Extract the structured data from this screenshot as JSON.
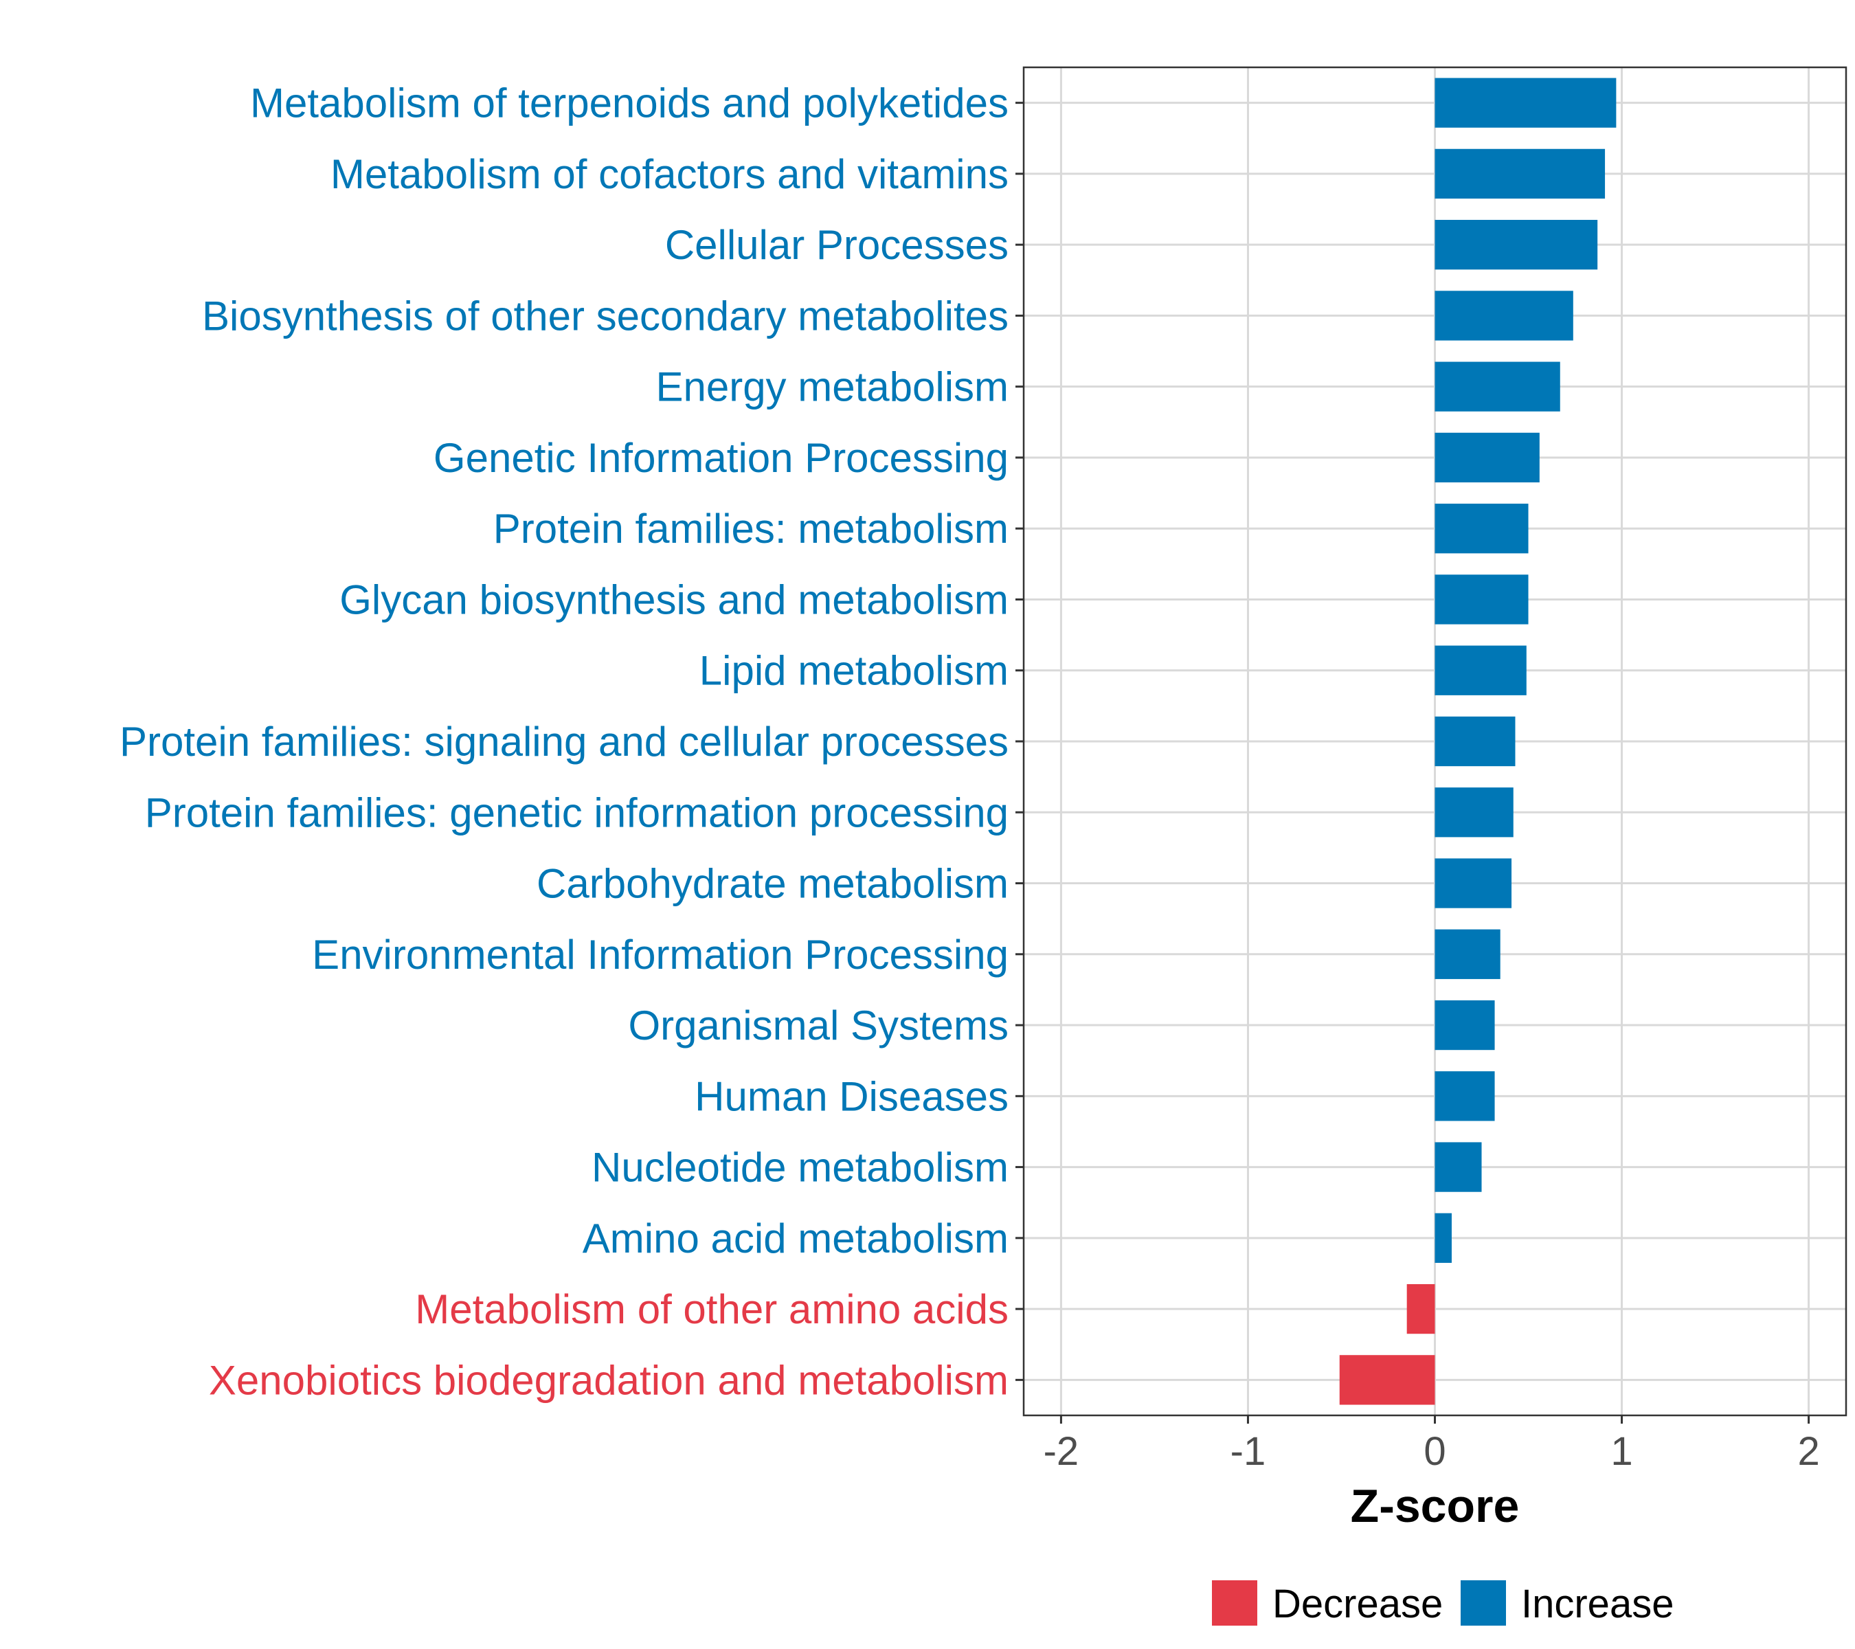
{
  "chart_data": {
    "type": "bar",
    "orientation": "horizontal",
    "title": "",
    "xlabel": "Z-score",
    "ylabel": "",
    "xlim": [
      -2.2,
      2.2
    ],
    "xticks": [
      -2,
      -1,
      0,
      1,
      2
    ],
    "xtick_labels": [
      "-2",
      "-1",
      "0",
      "1",
      "2"
    ],
    "grid": true,
    "categories": [
      "Metabolism of terpenoids and polyketides",
      "Metabolism of cofactors and vitamins",
      "Cellular Processes",
      "Biosynthesis of other secondary metabolites",
      "Energy metabolism",
      "Genetic Information Processing",
      "Protein families: metabolism",
      "Glycan biosynthesis and metabolism",
      "Lipid metabolism",
      "Protein families: signaling and cellular processes",
      "Protein families: genetic information processing",
      "Carbohydrate metabolism",
      "Environmental Information Processing",
      "Organismal Systems",
      "Human Diseases",
      "Nucleotide metabolism",
      "Amino acid metabolism",
      "Metabolism of other amino acids",
      "Xenobiotics biodegradation and metabolism"
    ],
    "values": [
      0.97,
      0.91,
      0.87,
      0.74,
      0.67,
      0.56,
      0.5,
      0.5,
      0.49,
      0.43,
      0.42,
      0.41,
      0.35,
      0.32,
      0.32,
      0.25,
      0.09,
      -0.15,
      -0.51
    ],
    "groups": [
      "Increase",
      "Increase",
      "Increase",
      "Increase",
      "Increase",
      "Increase",
      "Increase",
      "Increase",
      "Increase",
      "Increase",
      "Increase",
      "Increase",
      "Increase",
      "Increase",
      "Increase",
      "Increase",
      "Increase",
      "Decrease",
      "Decrease"
    ],
    "legend": {
      "position": "bottom",
      "entries": [
        {
          "label": "Decrease",
          "color": "#e43a47"
        },
        {
          "label": "Increase",
          "color": "#0077b6"
        }
      ]
    },
    "colors": {
      "Increase": "#0077b6",
      "Decrease": "#e43a47"
    }
  }
}
